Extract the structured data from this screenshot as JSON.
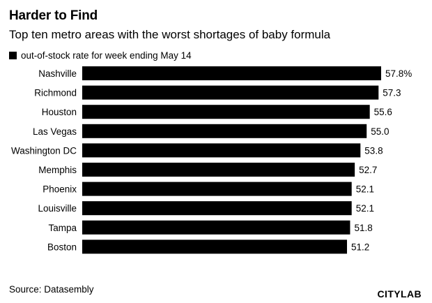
{
  "header": {
    "title": "Harder to Find",
    "subtitle": "Top ten metro areas with the worst shortages of baby formula"
  },
  "legend": {
    "label": "out-of-stock rate for week ending May 14",
    "color": "#000000"
  },
  "footer": {
    "source": "Source: Datasembly",
    "logo": "CITYLAB"
  },
  "chart_data": {
    "type": "bar",
    "orientation": "horizontal",
    "categories": [
      "Nashville",
      "Richmond",
      "Houston",
      "Las Vegas",
      "Washington DC",
      "Memphis",
      "Phoenix",
      "Louisville",
      "Tampa",
      "Boston"
    ],
    "values": [
      57.8,
      57.3,
      55.6,
      55.0,
      53.8,
      52.7,
      52.1,
      52.1,
      51.8,
      51.2
    ],
    "value_labels": [
      "57.8%",
      "57.3",
      "55.6",
      "55.0",
      "53.8",
      "52.7",
      "52.1",
      "52.1",
      "51.8",
      "51.2"
    ],
    "series": [
      {
        "name": "out-of-stock rate for week ending May 14",
        "values": [
          57.8,
          57.3,
          55.6,
          55.0,
          53.8,
          52.7,
          52.1,
          52.1,
          51.8,
          51.2
        ]
      }
    ],
    "xlim": [
      0,
      57.8
    ],
    "grid": false,
    "bar_color": "#000000",
    "legend_position": "top-left"
  }
}
